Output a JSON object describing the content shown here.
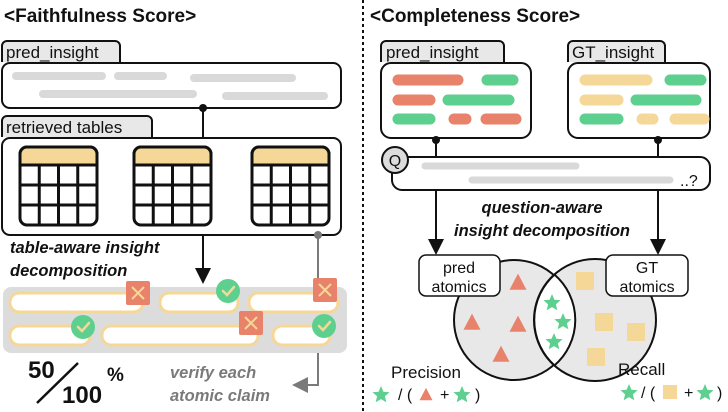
{
  "colors": {
    "red": "#e8826a",
    "green": "#5dcf8f",
    "yellow": "#f5d897",
    "gray_bar": "#d9d9d9",
    "panel_gray": "#dcdcdc",
    "arrow_gray": "#7a7a7a"
  },
  "faithfulness": {
    "title": "<Faithfulness Score>",
    "pred_tab": "pred_insight",
    "tables_tab": "retrieved tables",
    "decomp_line1": "table-aware insight",
    "decomp_line2": "decomposition",
    "claims": [
      {
        "verdict": "incorrect",
        "icon": "cross-icon"
      },
      {
        "verdict": "correct",
        "icon": "check-icon"
      },
      {
        "verdict": "incorrect",
        "icon": "cross-icon"
      },
      {
        "verdict": "correct",
        "icon": "check-icon"
      },
      {
        "verdict": "incorrect",
        "icon": "cross-icon"
      },
      {
        "verdict": "correct",
        "icon": "check-icon"
      }
    ],
    "score_numerator": "50",
    "score_denominator": "100",
    "score_unit": "%",
    "verify_line1": "verify each",
    "verify_line2": "atomic claim"
  },
  "completeness": {
    "title": "<Completeness Score>",
    "pred_tab": "pred_insight",
    "gt_tab": "GT_insight",
    "question_icon": "Q",
    "question_end": "..?",
    "decomp_line1": "question-aware",
    "decomp_line2": "insight decomposition",
    "pred_atomics_line1": "pred",
    "pred_atomics_line2": "atomics",
    "gt_atomics_line1": "GT",
    "gt_atomics_line2": "atomics",
    "precision_label": "Precision",
    "recall_label": "Recall",
    "formula_slash": "/ (",
    "formula_plus": "+",
    "formula_close": ")"
  }
}
